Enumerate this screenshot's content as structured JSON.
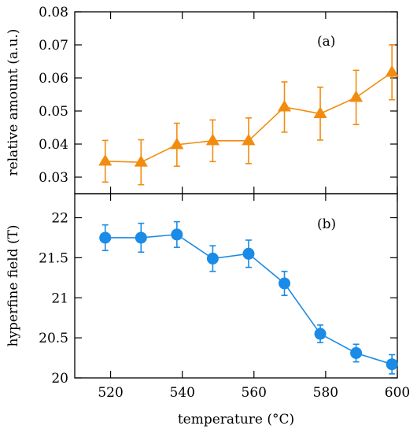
{
  "chart_data": [
    {
      "type": "line",
      "panel_label": "(a)",
      "ylabel": "relative amount (a.u.)",
      "xlabel": "",
      "xlim": [
        510,
        600
      ],
      "ylim": [
        0.025,
        0.08
      ],
      "yticks": [
        0.03,
        0.04,
        0.05,
        0.06,
        0.07,
        0.08
      ],
      "ytick_labels": [
        "0.03",
        "0.04",
        "0.05",
        "0.06",
        "0.07",
        "0.08"
      ],
      "marker": "triangle",
      "color": "#f28c0f",
      "series": [
        {
          "x": [
            518.5,
            528.5,
            538.5,
            548.5,
            558.5,
            568.5,
            578.5,
            588.5,
            598.5
          ],
          "y": [
            0.0348,
            0.0345,
            0.0398,
            0.041,
            0.041,
            0.0512,
            0.0492,
            0.0541,
            0.0617
          ],
          "err": [
            0.0063,
            0.0068,
            0.0065,
            0.0063,
            0.0069,
            0.0076,
            0.008,
            0.0082,
            0.0083
          ]
        }
      ]
    },
    {
      "type": "line",
      "panel_label": "(b)",
      "ylabel": "hyperfine field (T)",
      "xlabel": "temperature (°C)",
      "xlim": [
        510,
        600
      ],
      "ylim": [
        20,
        22.3
      ],
      "yticks": [
        20,
        20.5,
        21,
        21.5,
        22
      ],
      "ytick_labels": [
        "20",
        "20.5",
        "21",
        "21.5",
        "22"
      ],
      "xticks": [
        520,
        540,
        560,
        580,
        600
      ],
      "xtick_labels": [
        "520",
        "540",
        "560",
        "580",
        "600"
      ],
      "marker": "circle",
      "color": "#1a8be6",
      "series": [
        {
          "x": [
            518.5,
            528.5,
            538.5,
            548.5,
            558.5,
            568.5,
            578.5,
            588.5,
            598.5
          ],
          "y": [
            21.75,
            21.75,
            21.79,
            21.49,
            21.55,
            21.18,
            20.55,
            20.31,
            20.17
          ],
          "err": [
            0.16,
            0.18,
            0.16,
            0.16,
            0.17,
            0.15,
            0.11,
            0.11,
            0.12
          ]
        }
      ]
    }
  ]
}
